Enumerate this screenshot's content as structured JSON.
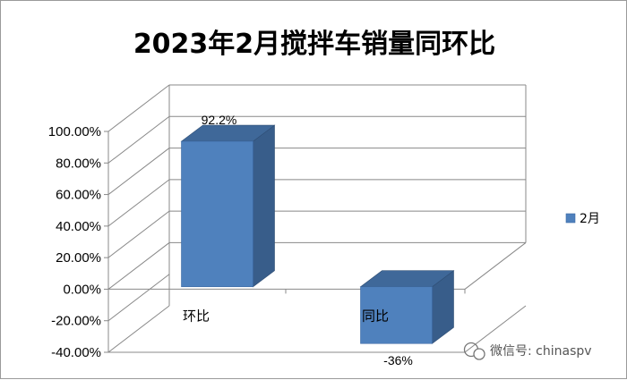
{
  "chart_data": {
    "type": "bar",
    "title": "2023年2月搅拌车销量同环比",
    "categories": [
      "环比",
      "同比"
    ],
    "series": [
      {
        "name": "2月",
        "values": [
          92.2,
          -36
        ],
        "labels": [
          "92.2%",
          "-36%"
        ]
      }
    ],
    "ylim": [
      -40,
      100
    ],
    "yticks": [
      100,
      80,
      60,
      40,
      20,
      0,
      -20,
      -40
    ],
    "ytick_labels": [
      "100.00%",
      "80.00%",
      "60.00%",
      "40.00%",
      "20.00%",
      "0.00%",
      "-20.00%",
      "-40.00%"
    ],
    "xlabel": "",
    "ylabel": "",
    "grid": true,
    "legend": "right",
    "style": "3d"
  },
  "colors": {
    "bar_front": "#4f81bd",
    "bar_side": "#385d8a",
    "bar_top": "#3f6899",
    "grid": "#888888"
  },
  "watermark": {
    "icon": "wechat-icon",
    "text": "微信号: chinaspv"
  }
}
